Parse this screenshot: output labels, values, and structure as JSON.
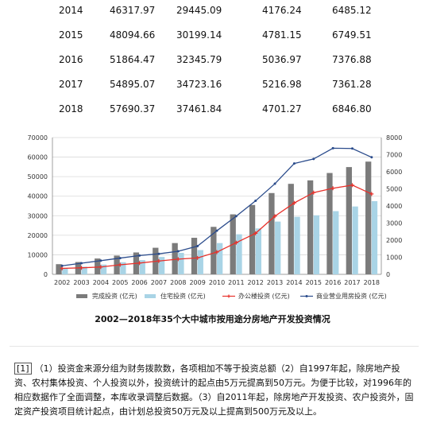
{
  "table": {
    "rows": [
      [
        "2014",
        "46317.97",
        "29445.09",
        "4176.24",
        "6485.12"
      ],
      [
        "2015",
        "48094.66",
        "30199.14",
        "4781.15",
        "6749.51"
      ],
      [
        "2016",
        "51864.47",
        "32345.79",
        "5036.97",
        "7376.88"
      ],
      [
        "2017",
        "54895.07",
        "34723.16",
        "5216.98",
        "7361.28"
      ],
      [
        "2018",
        "57690.37",
        "37461.84",
        "4701.27",
        "6846.80"
      ]
    ]
  },
  "chart_data": {
    "type": "bar",
    "title": "2002—2018年35个大中城市按用途分房地产开发投资情况",
    "categories": [
      "2002",
      "2003",
      "2004",
      "2005",
      "2006",
      "2007",
      "2008",
      "2009",
      "2010",
      "2011",
      "2012",
      "2013",
      "2014",
      "2015",
      "2016",
      "2017",
      "2018"
    ],
    "left_axis": {
      "ylim": [
        0,
        70000
      ],
      "ticks": [
        "0",
        "10000",
        "20000",
        "30000",
        "40000",
        "50000",
        "60000",
        "70000"
      ]
    },
    "right_axis": {
      "ylim": [
        0,
        8000
      ],
      "ticks": [
        "0",
        "1000",
        "2000",
        "3000",
        "4000",
        "5000",
        "6000",
        "7000",
        "8000"
      ]
    },
    "series": [
      {
        "name": "完成投资 (亿元)",
        "type": "bar",
        "axis": "left",
        "color": "#7b7b7b",
        "values": [
          5200,
          6300,
          8100,
          9600,
          11200,
          13600,
          16000,
          18700,
          24300,
          30700,
          35500,
          41600,
          46317.97,
          48094.66,
          51864.47,
          54895.07,
          57690.37
        ]
      },
      {
        "name": "住宅投资 (亿元)",
        "type": "bar",
        "axis": "left",
        "color": "#a9d4e6",
        "values": [
          3100,
          3900,
          5000,
          6200,
          7300,
          8900,
          11000,
          12400,
          16000,
          20500,
          23500,
          27000,
          29445.09,
          30199.14,
          32345.79,
          34723.16,
          37461.84
        ]
      },
      {
        "name": "办公楼投资 (亿元)",
        "type": "line",
        "axis": "right",
        "color": "#e8302a",
        "values": [
          350,
          380,
          430,
          560,
          660,
          780,
          890,
          960,
          1300,
          1850,
          2400,
          3400,
          4176.24,
          4781.15,
          5036.97,
          5216.98,
          4701.27
        ]
      },
      {
        "name": "商业营业用房投资 (亿元)",
        "type": "line",
        "axis": "right",
        "color": "#2b4c8c",
        "values": [
          500,
          650,
          800,
          950,
          1100,
          1200,
          1350,
          1650,
          2550,
          3400,
          4300,
          5300,
          6485.12,
          6749.51,
          7376.88,
          7361.28,
          6846.8
        ]
      }
    ],
    "legend": "bottom",
    "grid": true
  },
  "caption": "2002—2018年35个大中城市按用途分房地产开发投资情况",
  "footnote": {
    "marker": "[1]",
    "text": "（1）投资金来源分组为财务拨款数，各项相加不等于投资总额（2）自1997年起，除房地产投资、农村集体投资、个人投资以外，投资统计的起点由5万元提高到50万元。为便于比较，对1996年的相应数据作了全面调整，本库收录调整后数据。（3）自2011年起，除房地产开发投资、农户投资外，固定资产投资项目统计起点，由计划总投资50万元及以上提高到500万元及以上。"
  }
}
